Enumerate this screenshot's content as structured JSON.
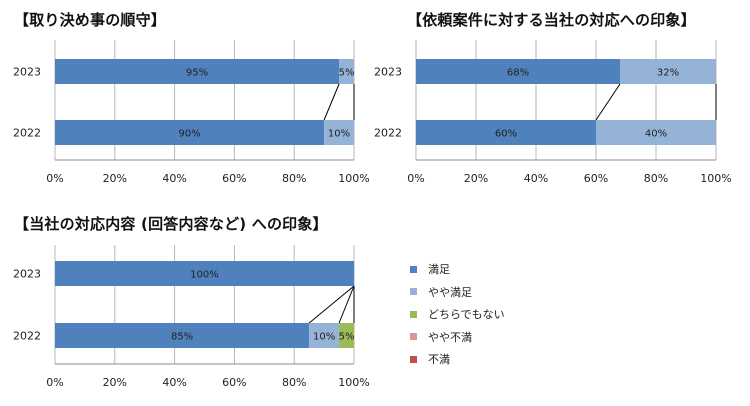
{
  "colors": {
    "satisfied": "#4f81bd",
    "somewhat_satisfied": "#95b3d7",
    "neutral": "#9bbb59",
    "somewhat_dissatisfied": "#d99694",
    "dissatisfied": "#c0504d"
  },
  "legend": {
    "items": [
      {
        "label": "満足",
        "color": "#4f81bd"
      },
      {
        "label": "やや満足",
        "color": "#95b3d7"
      },
      {
        "label": "どちらでもない",
        "color": "#9bbb59"
      },
      {
        "label": "やや不満",
        "color": "#d99694"
      },
      {
        "label": "不満",
        "color": "#c0504d"
      }
    ]
  },
  "chart_data": [
    {
      "type": "bar",
      "stacked": true,
      "orientation": "horizontal",
      "title": "【取り決め事の順守】",
      "categories": [
        "2023",
        "2022"
      ],
      "xlim": [
        0,
        100
      ],
      "x_ticks": [
        "0%",
        "20%",
        "40%",
        "60%",
        "80%",
        "100%"
      ],
      "grid": true,
      "series": [
        {
          "name": "満足",
          "values": [
            95,
            90
          ],
          "labels": [
            "95%",
            "90%"
          ]
        },
        {
          "name": "やや満足",
          "values": [
            5,
            10
          ],
          "labels": [
            "5%",
            "10%"
          ]
        },
        {
          "name": "どちらでもない",
          "values": [
            0,
            0
          ],
          "labels": [
            "",
            ""
          ]
        },
        {
          "name": "やや不満",
          "values": [
            0,
            0
          ],
          "labels": [
            "",
            ""
          ]
        },
        {
          "name": "不満",
          "values": [
            0,
            0
          ],
          "labels": [
            "",
            ""
          ]
        }
      ]
    },
    {
      "type": "bar",
      "stacked": true,
      "orientation": "horizontal",
      "title": "【依頼案件に対する当社の対応への印象】",
      "categories": [
        "2023",
        "2022"
      ],
      "xlim": [
        0,
        100
      ],
      "x_ticks": [
        "0%",
        "20%",
        "40%",
        "60%",
        "80%",
        "100%"
      ],
      "grid": true,
      "series": [
        {
          "name": "満足",
          "values": [
            68,
            60
          ],
          "labels": [
            "68%",
            "60%"
          ]
        },
        {
          "name": "やや満足",
          "values": [
            32,
            40
          ],
          "labels": [
            "32%",
            "40%"
          ]
        },
        {
          "name": "どちらでもない",
          "values": [
            0,
            0
          ],
          "labels": [
            "",
            ""
          ]
        },
        {
          "name": "やや不満",
          "values": [
            0,
            0
          ],
          "labels": [
            "",
            ""
          ]
        },
        {
          "name": "不満",
          "values": [
            0,
            0
          ],
          "labels": [
            "",
            ""
          ]
        }
      ]
    },
    {
      "type": "bar",
      "stacked": true,
      "orientation": "horizontal",
      "title": "【当社の対応内容 (回答内容など) への印象】",
      "categories": [
        "2023",
        "2022"
      ],
      "xlim": [
        0,
        100
      ],
      "x_ticks": [
        "0%",
        "20%",
        "40%",
        "60%",
        "80%",
        "100%"
      ],
      "grid": true,
      "series": [
        {
          "name": "満足",
          "values": [
            100,
            85
          ],
          "labels": [
            "100%",
            "85%"
          ]
        },
        {
          "name": "やや満足",
          "values": [
            0,
            10
          ],
          "labels": [
            "",
            "10%"
          ]
        },
        {
          "name": "どちらでもない",
          "values": [
            0,
            5
          ],
          "labels": [
            "",
            "5%"
          ]
        },
        {
          "name": "やや不満",
          "values": [
            0,
            0
          ],
          "labels": [
            "",
            ""
          ]
        },
        {
          "name": "不満",
          "values": [
            0,
            0
          ],
          "labels": [
            "",
            ""
          ]
        }
      ]
    }
  ]
}
